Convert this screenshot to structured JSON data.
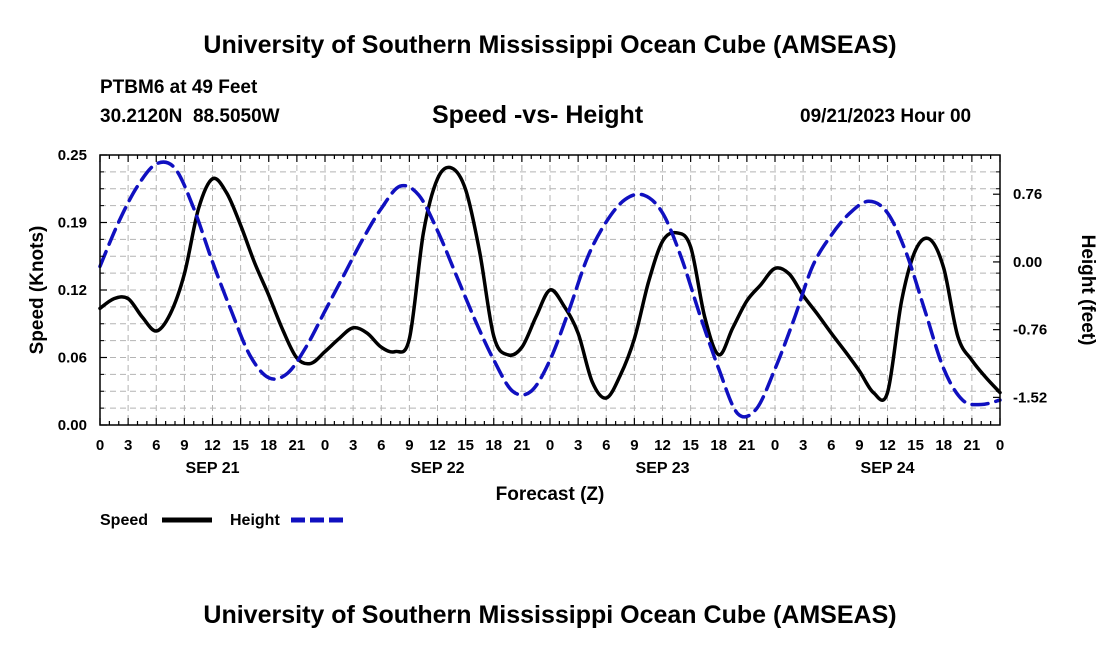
{
  "header": {
    "title": "University of Southern Mississippi Ocean Cube (AMSEAS)",
    "station": "PTBM6 at 49 Feet",
    "coords": "30.2120N  88.5050W",
    "subtitle": "Speed -vs- Height",
    "date": "09/21/2023 Hour 00"
  },
  "footer": {
    "title": "University of Southern Mississippi Ocean Cube (AMSEAS)"
  },
  "legend": {
    "speed_label": "Speed",
    "height_label": "Height"
  },
  "colors": {
    "speed": "#000000",
    "height": "#1010c0",
    "grid": "#b4b4b4"
  },
  "chart_data": {
    "type": "line",
    "title": "Speed -vs- Height",
    "xlabel": "Forecast (Z)",
    "ylabel": "Speed (Knots)",
    "y2label": "Height (feet)",
    "xlim": [
      0,
      96
    ],
    "ylim": [
      0,
      0.25
    ],
    "y2lim": [
      -1.83,
      1.2
    ],
    "y_ticks": [
      "0.00",
      "0.06",
      "0.12",
      "0.19",
      "0.25"
    ],
    "y_tick_values": [
      0,
      0.0625,
      0.125,
      0.1875,
      0.25
    ],
    "y2_ticks": [
      "-1.52",
      "-0.76",
      "0.00",
      "0.76"
    ],
    "y2_tick_values": [
      -1.52,
      -0.76,
      0.0,
      0.76
    ],
    "x_tick_labels": [
      "0",
      "3",
      "6",
      "9",
      "12",
      "15",
      "18",
      "21",
      "0",
      "3",
      "6",
      "9",
      "12",
      "15",
      "18",
      "21",
      "0",
      "3",
      "6",
      "9",
      "12",
      "15",
      "18",
      "21",
      "0",
      "3",
      "6",
      "9",
      "12",
      "15",
      "18",
      "21",
      "0"
    ],
    "day_labels": [
      "SEP 21",
      "SEP 22",
      "SEP 23",
      "SEP 24"
    ],
    "day_label_hours": [
      12,
      36,
      60,
      84
    ],
    "grid": true,
    "series": [
      {
        "name": "Speed",
        "axis": "left",
        "style": "solid",
        "x": [
          0,
          1.5,
          3,
          4.5,
          6,
          7.5,
          9,
          10.5,
          12,
          13.5,
          15,
          16.5,
          18,
          19.5,
          21,
          22.5,
          24,
          25.5,
          27,
          28.5,
          30,
          31.5,
          33,
          34.5,
          36,
          37.5,
          39,
          40.5,
          42,
          43.5,
          45,
          46.5,
          48,
          49.5,
          51,
          52.5,
          54,
          55.5,
          57,
          58.5,
          60,
          61.5,
          63,
          64.5,
          66,
          67.5,
          69,
          70.5,
          72,
          73.5,
          75,
          76.5,
          78,
          79.5,
          81,
          82.5,
          84,
          85.5,
          87,
          88.5,
          90,
          91.5,
          93,
          94.5,
          96
        ],
        "values": [
          0.108,
          0.117,
          0.117,
          0.1,
          0.087,
          0.103,
          0.14,
          0.2,
          0.228,
          0.215,
          0.185,
          0.15,
          0.12,
          0.088,
          0.062,
          0.057,
          0.068,
          0.08,
          0.09,
          0.085,
          0.072,
          0.068,
          0.08,
          0.178,
          0.228,
          0.238,
          0.218,
          0.16,
          0.082,
          0.065,
          0.072,
          0.1,
          0.125,
          0.11,
          0.085,
          0.04,
          0.025,
          0.046,
          0.08,
          0.132,
          0.17,
          0.178,
          0.165,
          0.1,
          0.065,
          0.09,
          0.115,
          0.13,
          0.145,
          0.14,
          0.12,
          0.103,
          0.085,
          0.068,
          0.05,
          0.03,
          0.03,
          0.115,
          0.162,
          0.172,
          0.145,
          0.082,
          0.06,
          0.044,
          0.03
        ]
      },
      {
        "name": "Height",
        "axis": "right",
        "style": "dashed",
        "x": [
          0,
          2,
          4,
          6,
          8,
          10,
          12,
          14,
          16,
          18,
          20,
          22,
          24,
          26,
          28,
          30,
          32,
          34,
          36,
          38,
          40,
          42,
          44,
          46,
          48,
          50,
          52,
          54,
          56,
          58,
          60,
          62,
          64,
          66,
          68,
          70,
          72,
          74,
          76,
          78,
          80,
          82,
          84,
          86,
          88,
          90,
          92,
          94,
          96
        ],
        "values": [
          -0.05,
          0.45,
          0.85,
          1.1,
          1.05,
          0.6,
          0.0,
          -0.55,
          -1.05,
          -1.3,
          -1.25,
          -0.95,
          -0.55,
          -0.15,
          0.25,
          0.6,
          0.85,
          0.75,
          0.35,
          -0.15,
          -0.65,
          -1.1,
          -1.45,
          -1.45,
          -1.1,
          -0.55,
          0.05,
          0.45,
          0.7,
          0.75,
          0.55,
          0.05,
          -0.6,
          -1.2,
          -1.7,
          -1.65,
          -1.2,
          -0.65,
          -0.05,
          0.3,
          0.55,
          0.68,
          0.55,
          0.1,
          -0.55,
          -1.2,
          -1.55,
          -1.6,
          -1.55
        ]
      }
    ]
  }
}
